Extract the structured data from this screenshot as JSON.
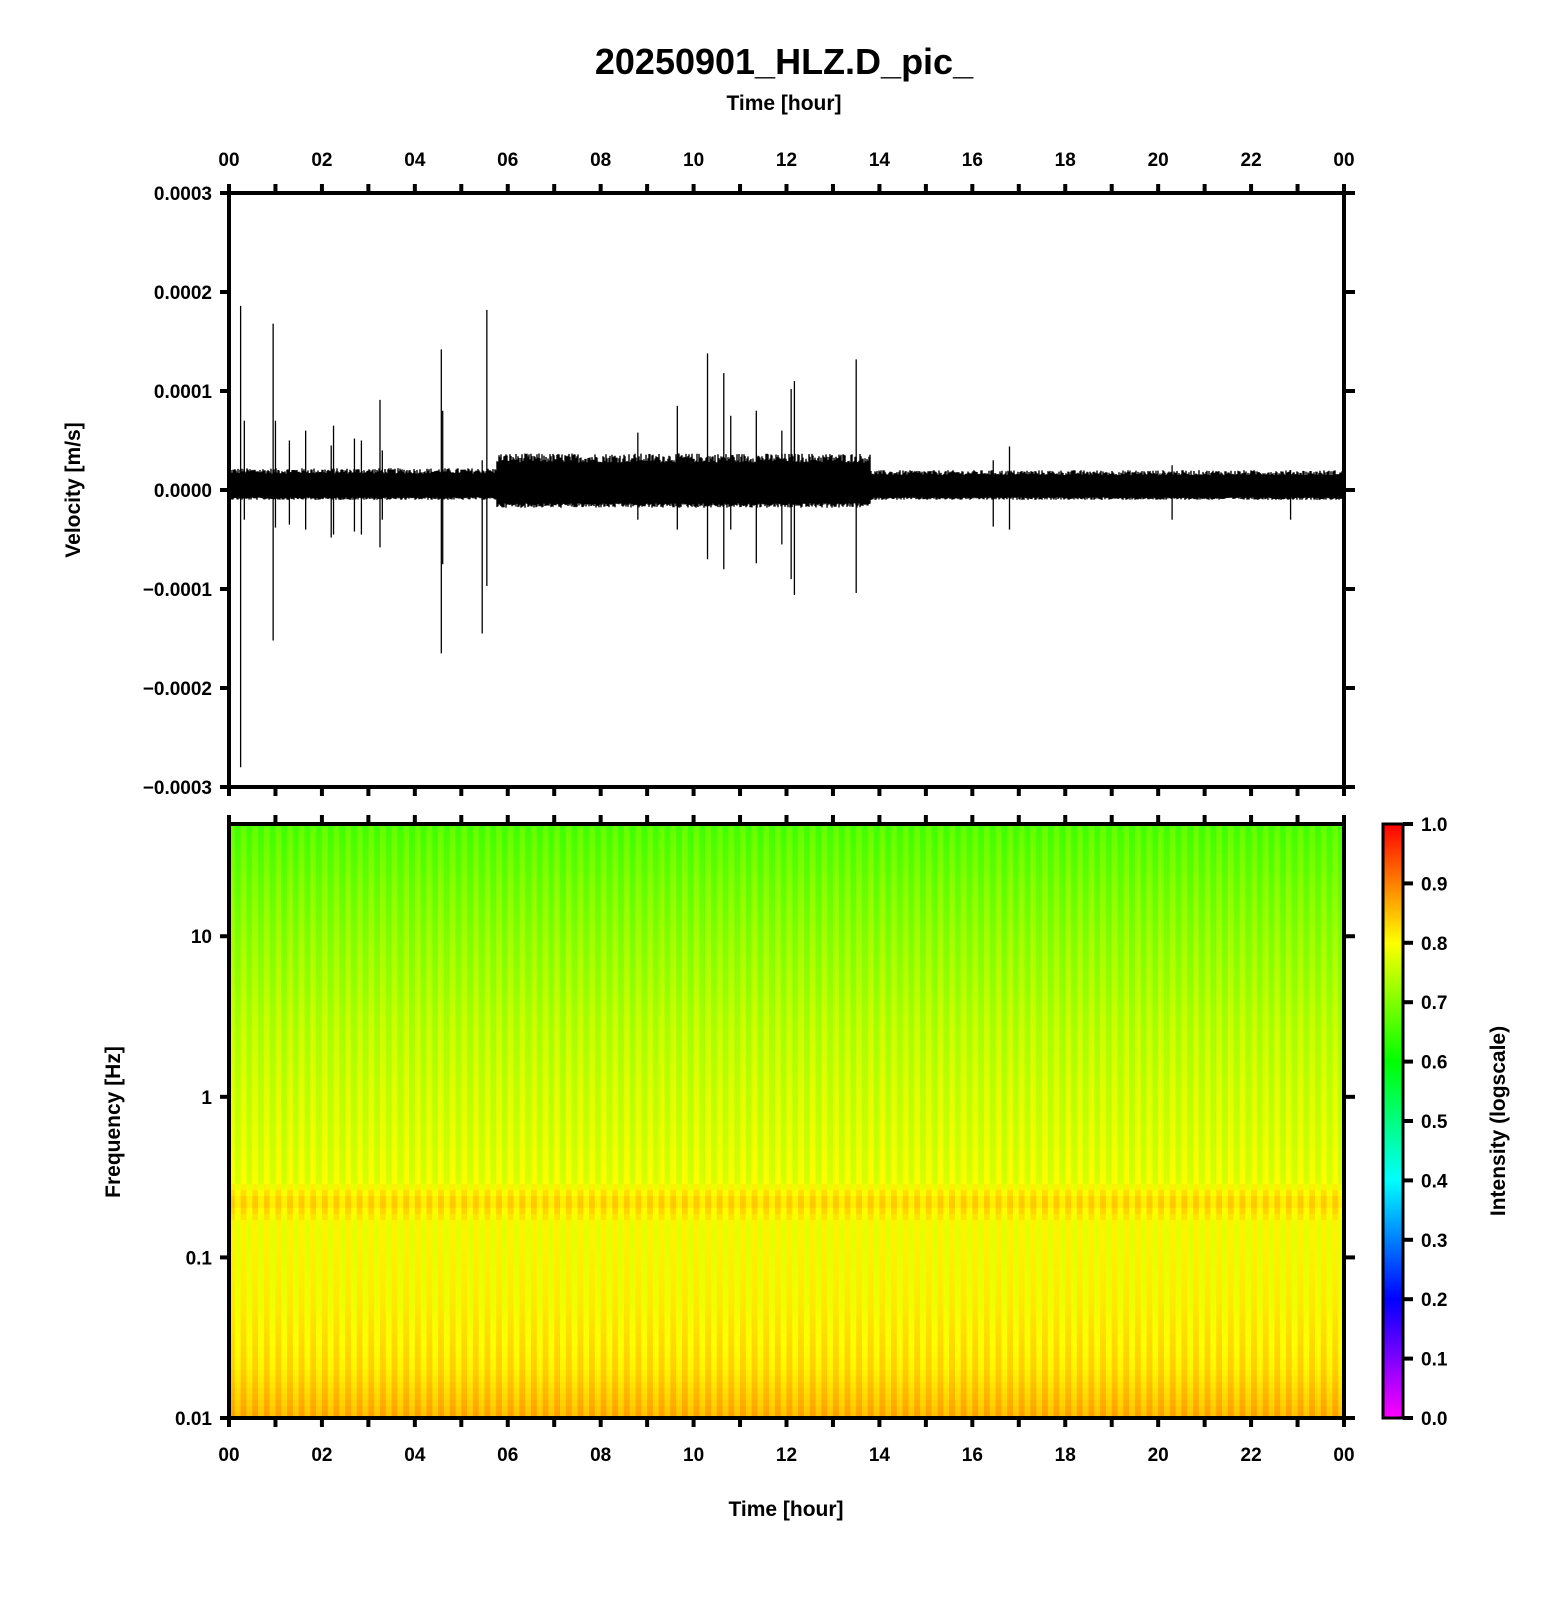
{
  "title": "20250901_HLZ.D_pic_",
  "top_xlabel": "Time [hour]",
  "bottom_xlabel": "Time [hour]",
  "chart_data": [
    {
      "type": "line",
      "panel": "seismogram",
      "ylabel": "Velocity [m/s]",
      "xlabel": "Time [hour]",
      "xlim": [
        0,
        24
      ],
      "ylim": [
        -0.0003,
        0.0003
      ],
      "x_tick_labels": [
        "00",
        "02",
        "04",
        "06",
        "08",
        "10",
        "12",
        "14",
        "16",
        "18",
        "20",
        "22",
        "00"
      ],
      "y_tick_labels": [
        "0.0003",
        "0.0002",
        "0.0001",
        "0.0000",
        "−0.0001",
        "−0.0002",
        "−0.0003"
      ],
      "line_color": "#000000",
      "noise_envelope": [
        {
          "start_hour": 0.0,
          "end_hour": 5.75,
          "upper": 2.2e-05,
          "lower": -1e-05
        },
        {
          "start_hour": 5.75,
          "end_hour": 13.8,
          "upper": 3.7e-05,
          "lower": -1.8e-05
        },
        {
          "start_hour": 13.8,
          "end_hour": 24.0,
          "upper": 2e-05,
          "lower": -1e-05
        }
      ],
      "spikes": [
        {
          "hour": 0.25,
          "max": 0.000186,
          "min": -0.00028
        },
        {
          "hour": 0.33,
          "max": 7e-05,
          "min": -3e-05
        },
        {
          "hour": 0.95,
          "max": 0.000168,
          "min": -0.000152
        },
        {
          "hour": 1.0,
          "max": 7e-05,
          "min": -3.8e-05
        },
        {
          "hour": 1.3,
          "max": 5e-05,
          "min": -3.5e-05
        },
        {
          "hour": 1.65,
          "max": 6e-05,
          "min": -4e-05
        },
        {
          "hour": 2.2,
          "max": 4.5e-05,
          "min": -4.8e-05
        },
        {
          "hour": 2.25,
          "max": 6.5e-05,
          "min": -4.5e-05
        },
        {
          "hour": 2.7,
          "max": 5.2e-05,
          "min": -4.2e-05
        },
        {
          "hour": 2.85,
          "max": 5e-05,
          "min": -4.5e-05
        },
        {
          "hour": 3.25,
          "max": 9.1e-05,
          "min": -5.8e-05
        },
        {
          "hour": 3.3,
          "max": 4e-05,
          "min": -3e-05
        },
        {
          "hour": 4.57,
          "max": 0.000142,
          "min": -0.000165
        },
        {
          "hour": 4.6,
          "max": 8e-05,
          "min": -7.5e-05
        },
        {
          "hour": 5.45,
          "max": 3e-05,
          "min": -0.000145
        },
        {
          "hour": 5.55,
          "max": 0.000182,
          "min": -9.7e-05
        },
        {
          "hour": 8.8,
          "max": 5.8e-05,
          "min": -3e-05
        },
        {
          "hour": 9.65,
          "max": 8.5e-05,
          "min": -4e-05
        },
        {
          "hour": 10.3,
          "max": 0.000138,
          "min": -7e-05
        },
        {
          "hour": 10.65,
          "max": 0.000118,
          "min": -8e-05
        },
        {
          "hour": 10.8,
          "max": 7.5e-05,
          "min": -4e-05
        },
        {
          "hour": 11.35,
          "max": 8e-05,
          "min": -7.4e-05
        },
        {
          "hour": 11.9,
          "max": 6e-05,
          "min": -5.5e-05
        },
        {
          "hour": 12.1,
          "max": 0.000102,
          "min": -9e-05
        },
        {
          "hour": 12.17,
          "max": 0.00011,
          "min": -0.000106
        },
        {
          "hour": 13.5,
          "max": 0.000132,
          "min": -0.000104
        },
        {
          "hour": 16.45,
          "max": 3e-05,
          "min": -3.7e-05
        },
        {
          "hour": 16.8,
          "max": 4.4e-05,
          "min": -4e-05
        },
        {
          "hour": 20.3,
          "max": 2.5e-05,
          "min": -3e-05
        },
        {
          "hour": 22.85,
          "max": 2e-05,
          "min": -3e-05
        }
      ]
    },
    {
      "type": "heatmap",
      "panel": "spectrogram",
      "ylabel": "Frequency [Hz]",
      "xlabel": "Time [hour]",
      "xlim": [
        0,
        24
      ],
      "ylim": [
        0.01,
        50
      ],
      "y_scale": "log",
      "x_tick_labels": [
        "00",
        "02",
        "04",
        "06",
        "08",
        "10",
        "12",
        "14",
        "16",
        "18",
        "20",
        "22",
        "00"
      ],
      "y_tick_labels": [
        "10",
        "1",
        "0.1",
        "0.01"
      ],
      "y_ticks": [
        10,
        1,
        0.1,
        0.01
      ],
      "column_count": 96,
      "intensity_profile": [
        {
          "freq": 50,
          "intensity": 0.66
        },
        {
          "freq": 20,
          "intensity": 0.69
        },
        {
          "freq": 10,
          "intensity": 0.71
        },
        {
          "freq": 3,
          "intensity": 0.74
        },
        {
          "freq": 1,
          "intensity": 0.76
        },
        {
          "freq": 0.5,
          "intensity": 0.77
        },
        {
          "freq": 0.3,
          "intensity": 0.78
        },
        {
          "freq": 0.22,
          "intensity": 0.83
        },
        {
          "freq": 0.16,
          "intensity": 0.79
        },
        {
          "freq": 0.05,
          "intensity": 0.8
        },
        {
          "freq": 0.02,
          "intensity": 0.82
        },
        {
          "freq": 0.01,
          "intensity": 0.86
        }
      ],
      "colorbar": {
        "label": "Intensity (logscale)",
        "range": [
          0,
          1
        ],
        "tick_labels": [
          "1.0",
          "0.9",
          "0.8",
          "0.7",
          "0.6",
          "0.5",
          "0.4",
          "0.3",
          "0.2",
          "0.1",
          "0.0"
        ],
        "colormap_stops": [
          {
            "v": 0.0,
            "color": "#ff00ff"
          },
          {
            "v": 0.2,
            "color": "#0000ff"
          },
          {
            "v": 0.4,
            "color": "#00ffff"
          },
          {
            "v": 0.6,
            "color": "#00ff00"
          },
          {
            "v": 0.8,
            "color": "#ffff00"
          },
          {
            "v": 1.0,
            "color": "#ff0000"
          }
        ]
      }
    }
  ]
}
